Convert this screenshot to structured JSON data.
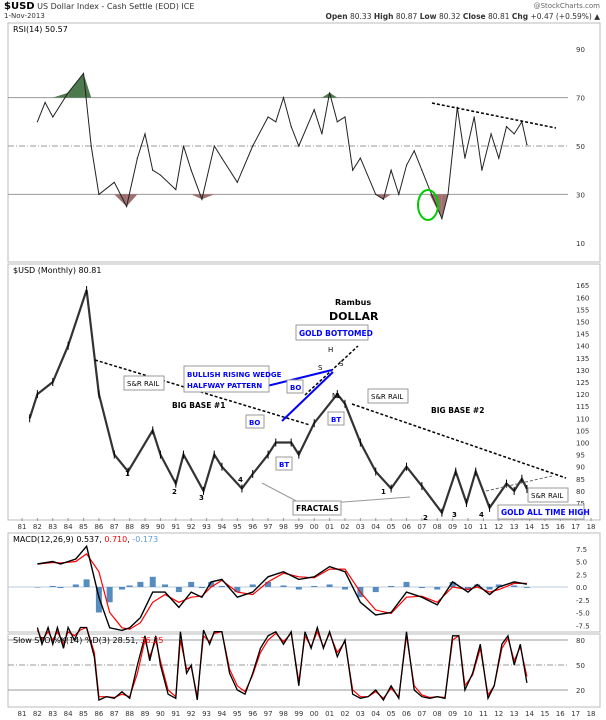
{
  "header": {
    "symbol": "$USD",
    "name": "US Dollar Index - Cash Settle (EOD) ICE",
    "date": "1-Nov-2013",
    "source": "@StockCharts.com",
    "open_label": "Open",
    "open": "80.33",
    "high_label": "High",
    "high": "80.87",
    "low_label": "Low",
    "low": "80.32",
    "close_label": "Close",
    "close": "80.81",
    "chg_label": "Chg",
    "chg": "+0.47 (+0.59%)"
  },
  "colors": {
    "price": "#333333",
    "macd": "#000000",
    "signal": "#ff0000",
    "histogram": "#3a78b4",
    "rsi_overbought_fill": "#4d7a4d",
    "rsi_oversold_fill": "#a07070",
    "annotation_blue": "#0000ff",
    "highlight_circle": "#00cc00"
  },
  "x_ticks": [
    "81",
    "82",
    "83",
    "84",
    "85",
    "86",
    "87",
    "88",
    "89",
    "90",
    "91",
    "92",
    "93",
    "94",
    "95",
    "96",
    "97",
    "98",
    "99",
    "00",
    "01",
    "02",
    "03",
    "04",
    "05",
    "06",
    "07",
    "08",
    "09",
    "10",
    "11",
    "12",
    "13",
    "14",
    "15",
    "16",
    "17",
    "18"
  ],
  "chart_data": [
    {
      "type": "line",
      "title": "RSI(14) 50.57",
      "ylim": [
        0,
        100
      ],
      "y_ticks": [
        90,
        70,
        50,
        30,
        10
      ],
      "reference_lines": [
        70,
        50,
        30
      ],
      "x": [
        1982,
        1982.5,
        1983,
        1984,
        1985,
        1985.5,
        1986,
        1987,
        1987.8,
        1988.5,
        1989,
        1989.5,
        1990,
        1991,
        1991.5,
        1992,
        1992.7,
        1993.5,
        1994,
        1995,
        1996,
        1997,
        1997.5,
        1998,
        1998.5,
        1999,
        2000,
        2000.5,
        2001,
        2001.5,
        2002,
        2002.5,
        2003,
        2004,
        2004.5,
        2005,
        2005.5,
        2006,
        2006.5,
        2007,
        2007.5,
        2008.3,
        2008.7,
        2009.3,
        2009.8,
        2010.4,
        2010.9,
        2011.5,
        2012,
        2012.5,
        2013,
        2013.5,
        2013.83
      ],
      "values": [
        60,
        68,
        62,
        72,
        80,
        50,
        30,
        35,
        25,
        45,
        55,
        40,
        38,
        32,
        50,
        40,
        28,
        50,
        45,
        35,
        50,
        62,
        60,
        70,
        58,
        50,
        65,
        55,
        72,
        60,
        62,
        40,
        45,
        30,
        28,
        40,
        30,
        42,
        48,
        40,
        32,
        20,
        30,
        66,
        45,
        62,
        40,
        55,
        45,
        58,
        55,
        60,
        50.57
      ]
    },
    {
      "type": "line",
      "title": "$USD (Monthly) 80.81",
      "ylim": [
        70,
        167
      ],
      "y_ticks": [
        165,
        160,
        155,
        150,
        145,
        140,
        135,
        130,
        125,
        120,
        115,
        110,
        105,
        100,
        95,
        90,
        85,
        80,
        75
      ],
      "x": [
        1981.5,
        1982,
        1983,
        1984,
        1985.2,
        1986,
        1987,
        1987.9,
        1989.5,
        1990,
        1991,
        1991.5,
        1992.8,
        1993.5,
        1994,
        1995.3,
        1996,
        1997,
        1997.5,
        1998.5,
        1999,
        2000,
        2001.5,
        2002,
        2003,
        2004,
        2005,
        2006,
        2007,
        2008.3,
        2009.2,
        2009.9,
        2010.5,
        2011.4,
        2012.5,
        2013,
        2013.5,
        2013.83
      ],
      "values": [
        110,
        120,
        125,
        140,
        163,
        120,
        95,
        88,
        105,
        95,
        83,
        95,
        80,
        95,
        90,
        81,
        87,
        95,
        100,
        100,
        95,
        108,
        120,
        116,
        100,
        88,
        81,
        90,
        82,
        71,
        88,
        75,
        88,
        73,
        83,
        80,
        85,
        80.81
      ],
      "annotations": {
        "rambus": "Rambus",
        "dollar": "DOLLAR",
        "gold_bottomed": "GOLD BOTTOMED",
        "wedge_line1": "BULLISH RISING WEDGE",
        "wedge_line2": "HALFWAY PATTERN",
        "sr_rail": "S&R RAIL",
        "big_base_1": "BIG BASE #1",
        "big_base_2": "BIG BASE #2",
        "bo": "BO",
        "bt": "BT",
        "nl": "NL",
        "h": "H",
        "s": "S",
        "fractals": "FRACTALS",
        "gold_ath": "GOLD ALL TIME HIGH",
        "n1": "1",
        "n2": "2",
        "n3": "3",
        "n4": "4"
      }
    },
    {
      "type": "line",
      "title": "MACD(12,26,9)",
      "legend": {
        "macd": "0.537",
        "signal": "0.710",
        "histogram": "-0.173"
      },
      "ylim": [
        -9,
        9
      ],
      "y_ticks": [
        "7.5",
        "5.0",
        "2.5",
        "0.0",
        "-2.5",
        "-5.0",
        "-7.5"
      ],
      "x": [
        1982,
        1983,
        1983.5,
        1984.5,
        1985.2,
        1986,
        1986.7,
        1987.5,
        1988,
        1988.7,
        1989.5,
        1990.3,
        1991.2,
        1992,
        1992.7,
        1993.3,
        1994,
        1995,
        1996,
        1997,
        1998,
        1999,
        2000,
        2001,
        2002,
        2003,
        2004,
        2005,
        2006,
        2007,
        2008,
        2009,
        2010,
        2010.6,
        2011.4,
        2012,
        2013,
        2013.83
      ],
      "series": [
        {
          "name": "MACD",
          "values": [
            4.5,
            5,
            4.5,
            5.5,
            8,
            -2,
            -8,
            -8.5,
            -8,
            -6,
            -1,
            -1,
            -4,
            -1,
            -2,
            1,
            1.5,
            -2,
            -1,
            2,
            3,
            1.5,
            2,
            4,
            3,
            -3,
            -5.5,
            -5,
            -1,
            -2,
            -3.5,
            1,
            -1,
            0.5,
            -1.5,
            0,
            1,
            0.54
          ]
        },
        {
          "name": "Signal",
          "values": [
            4.5,
            4.8,
            4.7,
            5,
            6.5,
            3,
            -5,
            -8,
            -8.3,
            -7,
            -3,
            -1.5,
            -3,
            -2,
            -1.8,
            0,
            1.3,
            -1,
            -1.5,
            1,
            2.7,
            2,
            1.8,
            3.5,
            3.5,
            -1,
            -4.5,
            -5.2,
            -2,
            -1.8,
            -3,
            0,
            -0.5,
            0,
            -1,
            -0.5,
            0.7,
            0.71
          ]
        }
      ]
    },
    {
      "type": "line",
      "title": "Slow STO %K(14) %D(3)",
      "legend": {
        "k": "28.51",
        "d": "36.25"
      },
      "ylim": [
        0,
        100
      ],
      "y_ticks": [
        80,
        50,
        20
      ],
      "reference_lines": [
        80,
        50,
        20
      ],
      "x": [
        1982,
        1982.3,
        1982.7,
        1983,
        1983.3,
        1983.7,
        1984,
        1984.4,
        1984.8,
        1985.2,
        1985.7,
        1986,
        1986.5,
        1987,
        1987.5,
        1988,
        1988.5,
        1989,
        1989.3,
        1989.7,
        1990,
        1990.5,
        1991,
        1991.3,
        1991.7,
        1992,
        1992.4,
        1992.8,
        1993.2,
        1993.5,
        1994,
        1994.5,
        1995,
        1995.5,
        1996,
        1996.5,
        1997,
        1997.5,
        1998,
        1998.5,
        1999,
        1999.4,
        1999.8,
        2000.2,
        2000.6,
        2001,
        2001.5,
        2002,
        2002.5,
        2003,
        2003.5,
        2004,
        2004.5,
        2005,
        2005.5,
        2006,
        2006.5,
        2007,
        2007.5,
        2008,
        2008.5,
        2009,
        2009.4,
        2009.8,
        2010.3,
        2010.8,
        2011.3,
        2011.7,
        2012.2,
        2012.6,
        2013,
        2013.4,
        2013.83
      ],
      "series": [
        {
          "name": "%K",
          "values": [
            95,
            75,
            95,
            75,
            95,
            70,
            95,
            80,
            95,
            95,
            60,
            8,
            12,
            10,
            18,
            10,
            50,
            85,
            55,
            85,
            50,
            15,
            10,
            90,
            40,
            50,
            8,
            92,
            75,
            90,
            90,
            40,
            20,
            15,
            40,
            70,
            85,
            90,
            75,
            90,
            25,
            90,
            70,
            95,
            70,
            90,
            60,
            80,
            15,
            10,
            12,
            20,
            8,
            25,
            10,
            90,
            20,
            12,
            10,
            12,
            10,
            85,
            85,
            20,
            40,
            75,
            10,
            25,
            75,
            85,
            50,
            75,
            28.51
          ]
        },
        {
          "name": "%D",
          "values": [
            92,
            80,
            90,
            80,
            90,
            75,
            90,
            85,
            92,
            95,
            65,
            12,
            12,
            11,
            15,
            12,
            40,
            80,
            60,
            80,
            55,
            20,
            12,
            80,
            45,
            48,
            12,
            85,
            78,
            88,
            90,
            45,
            25,
            18,
            38,
            65,
            80,
            88,
            78,
            88,
            30,
            85,
            72,
            90,
            72,
            88,
            65,
            78,
            20,
            12,
            12,
            18,
            10,
            22,
            12,
            85,
            25,
            14,
            11,
            12,
            11,
            80,
            85,
            25,
            38,
            70,
            14,
            25,
            70,
            82,
            55,
            72,
            36.25
          ]
        }
      ]
    }
  ]
}
